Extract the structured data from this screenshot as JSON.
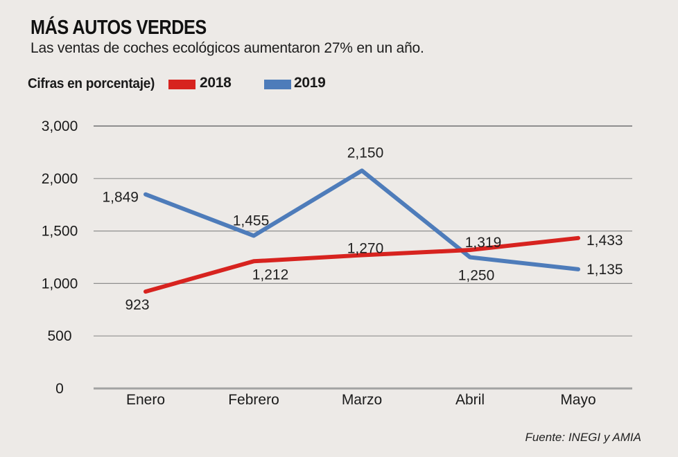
{
  "header": {
    "title": "MÁS AUTOS VERDES",
    "subtitle": "Las ventas de coches ecológicos aumentaron 27% en un año."
  },
  "legend": {
    "note": "Cifras en porcentaje)",
    "items": [
      {
        "label": "2018",
        "color": "#D7231F"
      },
      {
        "label": "2019",
        "color": "#4E7CBA"
      }
    ]
  },
  "source": "Fuente: INEGI y AMIA",
  "colors": {
    "background": "#EDEAE7",
    "text": "#1A1A1A",
    "gridline": "#8E8E8E",
    "axis_line": "#A2A2A2",
    "series_2018": "#D7231F",
    "series_2019": "#4E7CBA"
  },
  "chart_data": {
    "type": "line",
    "title": "MÁS AUTOS VERDES",
    "subtitle": "Las ventas de coches ecológicos aumentaron 27% en un año.",
    "unit_note": "Cifras en porcentaje)",
    "source": "Fuente: INEGI y AMIA",
    "grid": true,
    "legend_position": "top",
    "categories": [
      "Enero",
      "Febrero",
      "Marzo",
      "Abril",
      "Mayo"
    ],
    "y_ticks": [
      {
        "label": "3,000",
        "value": 3000
      },
      {
        "label": "2,000",
        "value": 2000
      },
      {
        "label": "1,500",
        "value": 1500
      },
      {
        "label": "1,000",
        "value": 1000
      },
      {
        "label": "500",
        "value": 500
      },
      {
        "label": "0",
        "value": 0
      }
    ],
    "axis_note": "gridlines are evenly spaced although the 2,000–3,000 step doubles (2,500 omitted)",
    "series": [
      {
        "name": "2019",
        "color": "#4E7CBA",
        "values": [
          1849,
          1455,
          2150,
          1250,
          1135
        ],
        "points": [
          {
            "value": 1849,
            "label": "1,849",
            "place": "left",
            "dx": 0,
            "dy": 4
          },
          {
            "value": 1455,
            "label": "1,455",
            "place": "above",
            "dx": -4,
            "dy": -6
          },
          {
            "value": 2150,
            "label": "2,150",
            "place": "above",
            "dx": 5,
            "dy": -10
          },
          {
            "value": 1250,
            "label": "1,250",
            "place": "below",
            "dx": 9,
            "dy": 7
          },
          {
            "value": 1135,
            "label": "1,135",
            "place": "right",
            "dx": 0,
            "dy": 0
          }
        ]
      },
      {
        "name": "2018",
        "color": "#D7231F",
        "values": [
          923,
          1212,
          1270,
          1319,
          1433
        ],
        "points": [
          {
            "value": 923,
            "label": "923",
            "place": "below",
            "dx": -12,
            "dy": 0
          },
          {
            "value": 1212,
            "label": "1,212",
            "place": "below",
            "dx": 24,
            "dy": 0
          },
          {
            "value": 1270,
            "label": "1,270",
            "place": "above",
            "dx": 5,
            "dy": 6
          },
          {
            "value": 1319,
            "label": "1,319",
            "place": "above",
            "dx": 19,
            "dy": 5
          },
          {
            "value": 1433,
            "label": "1,433",
            "place": "right",
            "dx": 0,
            "dy": 3
          }
        ]
      }
    ]
  }
}
